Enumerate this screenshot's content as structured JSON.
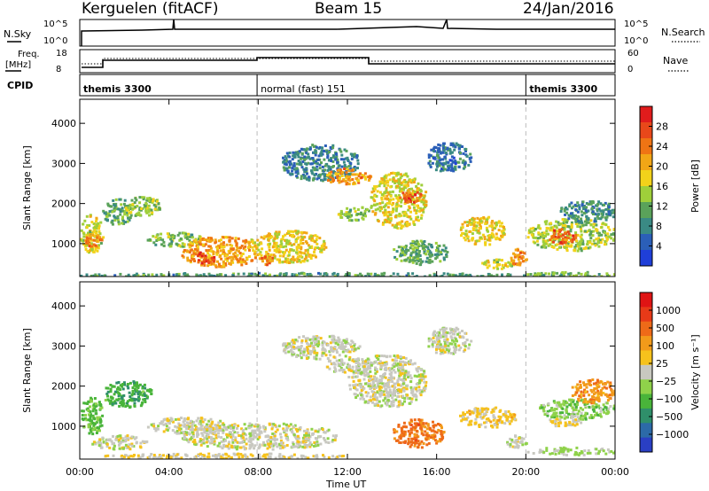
{
  "header": {
    "title": "Kerguelen (fitACF)",
    "beam": "Beam 15",
    "date": "24/Jan/2016"
  },
  "top_panels": {
    "nsky": {
      "label": "N.Sky",
      "ticks": [
        "10^5",
        "10^0"
      ]
    },
    "nsearch": {
      "label": "N.Search",
      "ticks": [
        "10^5",
        "10^0"
      ]
    },
    "freq": {
      "label_1": "Freq.",
      "label_2": "[MHz]",
      "ticks": [
        "18",
        "8"
      ]
    },
    "nave": {
      "label": "Nave",
      "ticks": [
        "60",
        "0"
      ]
    },
    "cpid": {
      "label": "CPID",
      "segments": [
        {
          "name": "themis 3300",
          "start_hour": 0,
          "end_hour": 7.95
        },
        {
          "name": "normal (fast) 151",
          "start_hour": 7.95,
          "end_hour": 20.0
        },
        {
          "name": "themis 3300",
          "start_hour": 20.0,
          "end_hour": 24
        }
      ]
    }
  },
  "power_colorbar": {
    "title": "Power [dB]",
    "ticks": [
      "28",
      "24",
      "20",
      "16",
      "12",
      "8",
      "4"
    ],
    "colors": [
      "#1f3fd8",
      "#2b5fb8",
      "#3a8a84",
      "#5aa25a",
      "#9fcf3a",
      "#f2d21a",
      "#f2a616",
      "#ef7414",
      "#e8481a",
      "#e01c1c"
    ]
  },
  "velocity_colorbar": {
    "title": "Velocity [m s⁻¹]",
    "ticks": [
      "1000",
      "500",
      "100",
      "25",
      "−25",
      "−100",
      "−500",
      "−1000"
    ],
    "colors": [
      "#2a3fc4",
      "#2c6aa8",
      "#2f8f6a",
      "#49b43a",
      "#8fd24a",
      "#c8c8c0",
      "#f6c21c",
      "#f29a1a",
      "#ee6a18",
      "#e83a18",
      "#e01414"
    ]
  },
  "axes": {
    "ylabel": "Slant Range [km]",
    "yticks": [
      "4000",
      "3000",
      "2000",
      "1000"
    ],
    "xticks": [
      "00:00",
      "04:00",
      "08:00",
      "12:00",
      "16:00",
      "20:00",
      "00:00"
    ],
    "xlabel": "Time UT"
  },
  "chart_data": [
    {
      "type": "heatmap",
      "title": "Power [dB]",
      "xlabel": "Time UT",
      "ylabel": "Slant Range [km]",
      "xlim": [
        0,
        24
      ],
      "ylim": [
        180,
        4600
      ],
      "colorbar_range": [
        0,
        32
      ],
      "regions": [
        {
          "t0": 0.0,
          "t1": 1.0,
          "r0": 800,
          "r1": 1750,
          "value": 16
        },
        {
          "t0": 0.2,
          "t1": 1.0,
          "r0": 950,
          "r1": 1250,
          "value": 24
        },
        {
          "t0": 1.0,
          "t1": 2.3,
          "r0": 1500,
          "r1": 2150,
          "value": 11
        },
        {
          "t0": 2.0,
          "t1": 3.6,
          "r0": 1700,
          "r1": 2200,
          "value": 14
        },
        {
          "t0": 3.0,
          "t1": 5.5,
          "r0": 950,
          "r1": 1300,
          "value": 13
        },
        {
          "t0": 4.5,
          "t1": 8.0,
          "r0": 450,
          "r1": 1200,
          "value": 21
        },
        {
          "t0": 5.0,
          "t1": 6.0,
          "r0": 500,
          "r1": 850,
          "value": 27
        },
        {
          "t0": 7.5,
          "t1": 11.0,
          "r0": 550,
          "r1": 1350,
          "value": 18
        },
        {
          "t0": 8.0,
          "t1": 8.6,
          "r0": 500,
          "r1": 750,
          "value": 25
        },
        {
          "t0": 9.0,
          "t1": 12.5,
          "r0": 2600,
          "r1": 3500,
          "value": 8
        },
        {
          "t0": 11.0,
          "t1": 13.0,
          "r0": 2500,
          "r1": 2900,
          "value": 22
        },
        {
          "t0": 11.5,
          "t1": 13.0,
          "r0": 1600,
          "r1": 1950,
          "value": 13
        },
        {
          "t0": 13.0,
          "t1": 15.5,
          "r0": 1400,
          "r1": 2800,
          "value": 17
        },
        {
          "t0": 14.3,
          "t1": 15.3,
          "r0": 2050,
          "r1": 2350,
          "value": 27
        },
        {
          "t0": 15.5,
          "t1": 17.5,
          "r0": 2800,
          "r1": 3550,
          "value": 7
        },
        {
          "t0": 14.0,
          "t1": 16.5,
          "r0": 500,
          "r1": 1100,
          "value": 11
        },
        {
          "t0": 17.0,
          "t1": 19.0,
          "r0": 1000,
          "r1": 1700,
          "value": 18
        },
        {
          "t0": 18.0,
          "t1": 19.5,
          "r0": 400,
          "r1": 650,
          "value": 16
        },
        {
          "t0": 19.2,
          "t1": 20.0,
          "r0": 500,
          "r1": 900,
          "value": 23
        },
        {
          "t0": 20.0,
          "t1": 24.0,
          "r0": 850,
          "r1": 1650,
          "value": 15
        },
        {
          "t0": 21.0,
          "t1": 22.2,
          "r0": 1000,
          "r1": 1400,
          "value": 26
        },
        {
          "t0": 21.5,
          "t1": 24.0,
          "r0": 1550,
          "r1": 2100,
          "value": 9
        },
        {
          "t0": 20.0,
          "t1": 24.0,
          "r0": 180,
          "r1": 320,
          "value": 12
        },
        {
          "t0": 0.0,
          "t1": 20.0,
          "r0": 180,
          "r1": 300,
          "value": 10
        }
      ]
    },
    {
      "type": "heatmap",
      "title": "Velocity [m s⁻¹]",
      "xlabel": "Time UT",
      "ylabel": "Slant Range [km]",
      "xlim": [
        0,
        24
      ],
      "ylim": [
        180,
        4600
      ],
      "colorbar_range": [
        -1000,
        1000
      ],
      "regions": [
        {
          "t0": 0.0,
          "t1": 1.0,
          "r0": 800,
          "r1": 1750,
          "value": -300
        },
        {
          "t0": 1.0,
          "t1": 3.2,
          "r0": 1500,
          "r1": 2150,
          "value": -400
        },
        {
          "t0": 0.5,
          "t1": 3.0,
          "r0": 450,
          "r1": 800,
          "value": 0
        },
        {
          "t0": 3.0,
          "t1": 6.5,
          "r0": 850,
          "r1": 1250,
          "value": 0
        },
        {
          "t0": 4.5,
          "t1": 11.5,
          "r0": 450,
          "r1": 1100,
          "value": 0
        },
        {
          "t0": 9.0,
          "t1": 12.5,
          "r0": 2700,
          "r1": 3300,
          "value": 0
        },
        {
          "t0": 11.0,
          "t1": 13.0,
          "r0": 2350,
          "r1": 2750,
          "value": 0
        },
        {
          "t0": 12.0,
          "t1": 15.5,
          "r0": 1500,
          "r1": 2800,
          "value": 0
        },
        {
          "t0": 13.5,
          "t1": 14.5,
          "r0": 1800,
          "r1": 2100,
          "value": 60
        },
        {
          "t0": 15.5,
          "t1": 17.5,
          "r0": 2800,
          "r1": 3500,
          "value": 0
        },
        {
          "t0": 14.0,
          "t1": 16.3,
          "r0": 500,
          "r1": 1200,
          "value": 500
        },
        {
          "t0": 17.0,
          "t1": 19.5,
          "r0": 1000,
          "r1": 1500,
          "value": 150
        },
        {
          "t0": 19.0,
          "t1": 20.0,
          "r0": 500,
          "r1": 800,
          "value": 0
        },
        {
          "t0": 20.0,
          "t1": 24.0,
          "r0": 300,
          "r1": 500,
          "value": -120
        },
        {
          "t0": 20.5,
          "t1": 24.0,
          "r0": 1200,
          "r1": 1700,
          "value": -200
        },
        {
          "t0": 21.0,
          "t1": 22.5,
          "r0": 1000,
          "r1": 1300,
          "value": 80
        },
        {
          "t0": 22.0,
          "t1": 24.0,
          "r0": 1600,
          "r1": 2200,
          "value": 400
        },
        {
          "t0": 1.0,
          "t1": 12.0,
          "r0": 200,
          "r1": 350,
          "value": 60
        }
      ]
    }
  ]
}
